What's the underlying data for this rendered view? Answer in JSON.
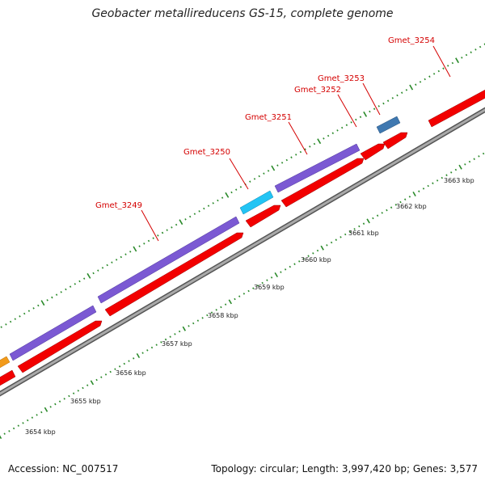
{
  "title": "Geobacter metallireducens GS-15, complete genome",
  "footer": {
    "accession": "Accession: NC_007517",
    "stats": "Topology: circular; Length: 3,997,420 bp; Genes: 3,577"
  },
  "colors": {
    "forward_gene": "#7b59d3",
    "reverse_gene": "#f20000",
    "hypothetical_cyan": "#22c4f4",
    "steelblue_gene": "#3f78b0",
    "orange_gene": "#f29a1a",
    "backbone": "#8c8c8c",
    "tick": "#2a8a2a",
    "label": "#d40000"
  },
  "scale_labels": [
    "3654 kbp",
    "3655 kbp",
    "3656 kbp",
    "3657 kbp",
    "3658 kbp",
    "3659 kbp",
    "3660 kbp",
    "3661 kbp",
    "3662 kbp",
    "3663 kbp"
  ],
  "gene_labels": [
    "Gmet_3249",
    "Gmet_3250",
    "Gmet_3251",
    "Gmet_3252",
    "Gmet_3253",
    "Gmet_3254"
  ]
}
